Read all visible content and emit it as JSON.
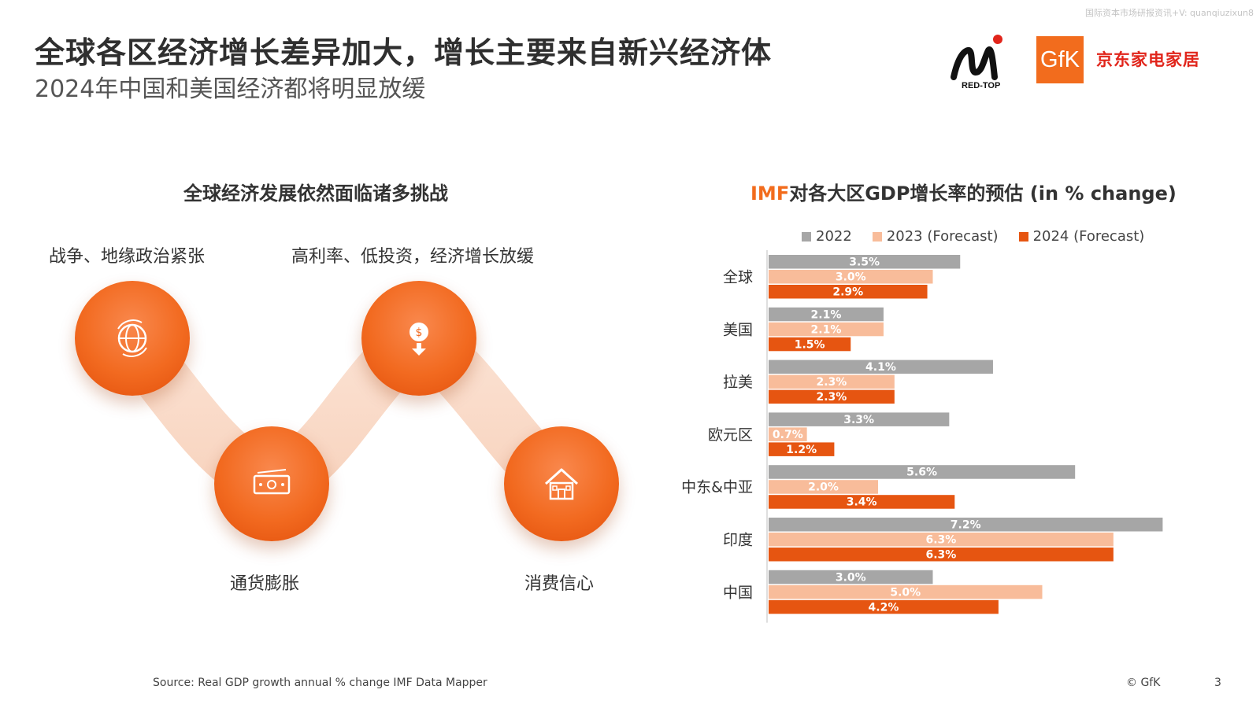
{
  "watermark": "国际资本市场研报资讯+V: quanqiuzixun8",
  "header": {
    "title": "全球各区经济增长差异加大，增长主要来自新兴经济体",
    "subtitle": "2024年中国和美国经济都将明显放缓"
  },
  "logos": {
    "redtop": "RED-TOP",
    "gfk": "GfK",
    "jd": "京东家电家居"
  },
  "left_panel": {
    "title": "全球经济发展依然面临诸多挑战",
    "challenges": [
      {
        "label": "战争、地缘政治紧张",
        "icon": "globe-icon"
      },
      {
        "label": "通货膨胀",
        "icon": "banknote-icon"
      },
      {
        "label": "高利率、低投资，经济增长放缓",
        "icon": "money-down-icon"
      },
      {
        "label": "消费信心",
        "icon": "house-icon"
      }
    ]
  },
  "right_panel": {
    "title_prefix": "IMF",
    "title_rest": "对各大区GDP增长率的预估 (in % change)"
  },
  "colors": {
    "accent": "#f26c1d",
    "series_2022": "#a6a6a6",
    "series_2023": "#f8bc9a",
    "series_2024": "#e65511"
  },
  "chart_data": {
    "type": "bar",
    "orientation": "horizontal",
    "title": "IMF对各大区GDP增长率的预估 (in % change)",
    "categories": [
      "全球",
      "美国",
      "拉美",
      "欧元区",
      "中东&中亚",
      "印度",
      "中国"
    ],
    "series": [
      {
        "name": "2022",
        "values": [
          3.5,
          2.1,
          4.1,
          3.3,
          5.6,
          7.2,
          3.0
        ],
        "labels": [
          "3.5%",
          "2.1%",
          "4.1%",
          "3.3%",
          "5.6%",
          "7.2%",
          "3.0%"
        ]
      },
      {
        "name": "2023 (Forecast)",
        "values": [
          3.0,
          2.1,
          2.3,
          0.7,
          2.0,
          6.3,
          5.0
        ],
        "labels": [
          "3.0%",
          "2.1%",
          "2.3%",
          "0.7%",
          "2.0%",
          "6.3%",
          "5.0%"
        ]
      },
      {
        "name": "2024 (Forecast)",
        "values": [
          2.9,
          1.5,
          2.3,
          1.2,
          3.4,
          6.3,
          4.2
        ],
        "labels": [
          "2.9%",
          "1.5%",
          "2.3%",
          "1.2%",
          "3.4%",
          "6.3%",
          "4.2%"
        ]
      }
    ],
    "xlim": [
      0,
      7.2
    ],
    "legend_position": "top",
    "grid": false
  },
  "footer": {
    "source": "Source: Real GDP growth annual % change IMF Data Mapper",
    "copyright": "© GfK",
    "page": "3"
  }
}
